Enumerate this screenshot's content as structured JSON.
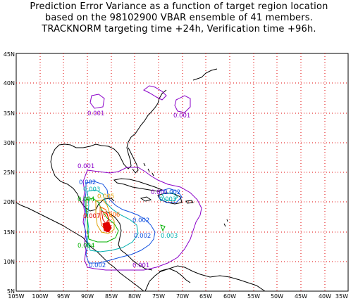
{
  "title": {
    "line1": "Prediction Error Variance as a function of target region location",
    "line2": "based on the 98102900 VBAR ensemble of 41 members.",
    "line3": "TRACKNORM targeting time +24h, Verification time +96h."
  },
  "axes": {
    "x_labels": [
      "105W",
      "100W",
      "95W",
      "90W",
      "85W",
      "80W",
      "75W",
      "70W",
      "65W",
      "60W",
      "55W",
      "50W",
      "45W",
      "40W",
      "35W"
    ],
    "y_labels": [
      "5N",
      "10N",
      "15N",
      "20N",
      "25N",
      "30N",
      "35N",
      "40N",
      "45N"
    ]
  },
  "contour_labels": {
    "n_east": "0.001",
    "n_west": "0.001",
    "gulf_west": "0.001",
    "yucatan_1": "0.002",
    "yucatan_2": "0.003",
    "honduras_a": "0.004",
    "honduras_b": "0.005",
    "honduras_c": "0.007",
    "honduras_d": "0.006",
    "honduras_e": "0.004",
    "cuba_1": "0.001",
    "cuba_2": "0.002",
    "cuba_3": "0.003",
    "carib_1": "0.002",
    "carib_2": "0.002",
    "carib_3": "0.003",
    "panama_1": "0.002",
    "panama_2": "0.001"
  },
  "colors": {
    "c001": "#8a00c8",
    "c002": "#1050e0",
    "c003": "#00b0b0",
    "c004": "#00b000",
    "c005": "#e0a000",
    "c006": "#ff6000",
    "c007": "#e00000",
    "grid": "#e00000",
    "coast": "#000000"
  }
}
